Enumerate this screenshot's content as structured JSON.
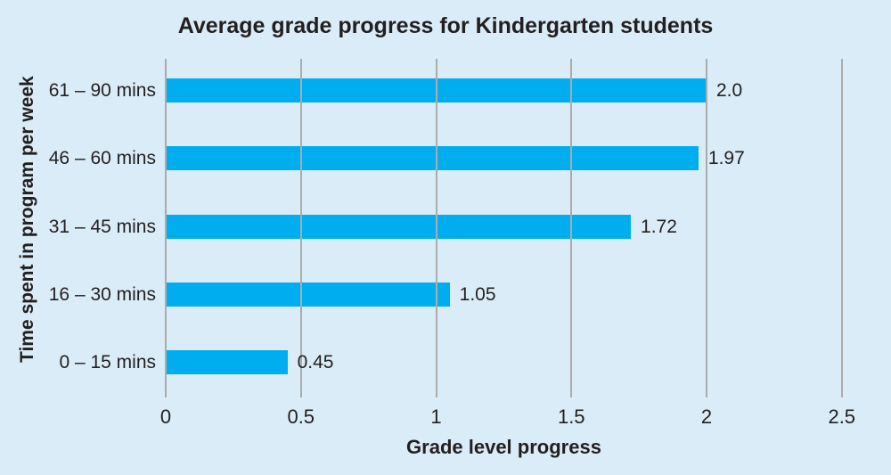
{
  "chart_data": {
    "type": "bar",
    "orientation": "horizontal",
    "title": "Average grade progress for Kindergarten students",
    "categories": [
      "61 – 90 mins",
      "46 – 60 mins",
      "31 – 45 mins",
      "16 – 30 mins",
      "0 – 15 mins"
    ],
    "values": [
      2.0,
      1.97,
      1.72,
      1.05,
      0.45
    ],
    "value_labels": [
      "2.0",
      "1.97",
      "1.72",
      "1.05",
      "0.45"
    ],
    "xlabel": "Grade level progress",
    "ylabel": "Time spent in program per week",
    "xlim": [
      0,
      2.5
    ],
    "xticks": [
      0,
      0.5,
      1,
      1.5,
      2,
      2.5
    ],
    "xtick_labels": [
      "0",
      "0.5",
      "1",
      "1.5",
      "2",
      "2.5"
    ],
    "grid": true,
    "gridlines_over_bars": true,
    "legend": false,
    "colors": {
      "bar": "#00AEEF",
      "background": "#DAECF7",
      "gridline": "#ABABAB",
      "text": "#231F20"
    }
  }
}
